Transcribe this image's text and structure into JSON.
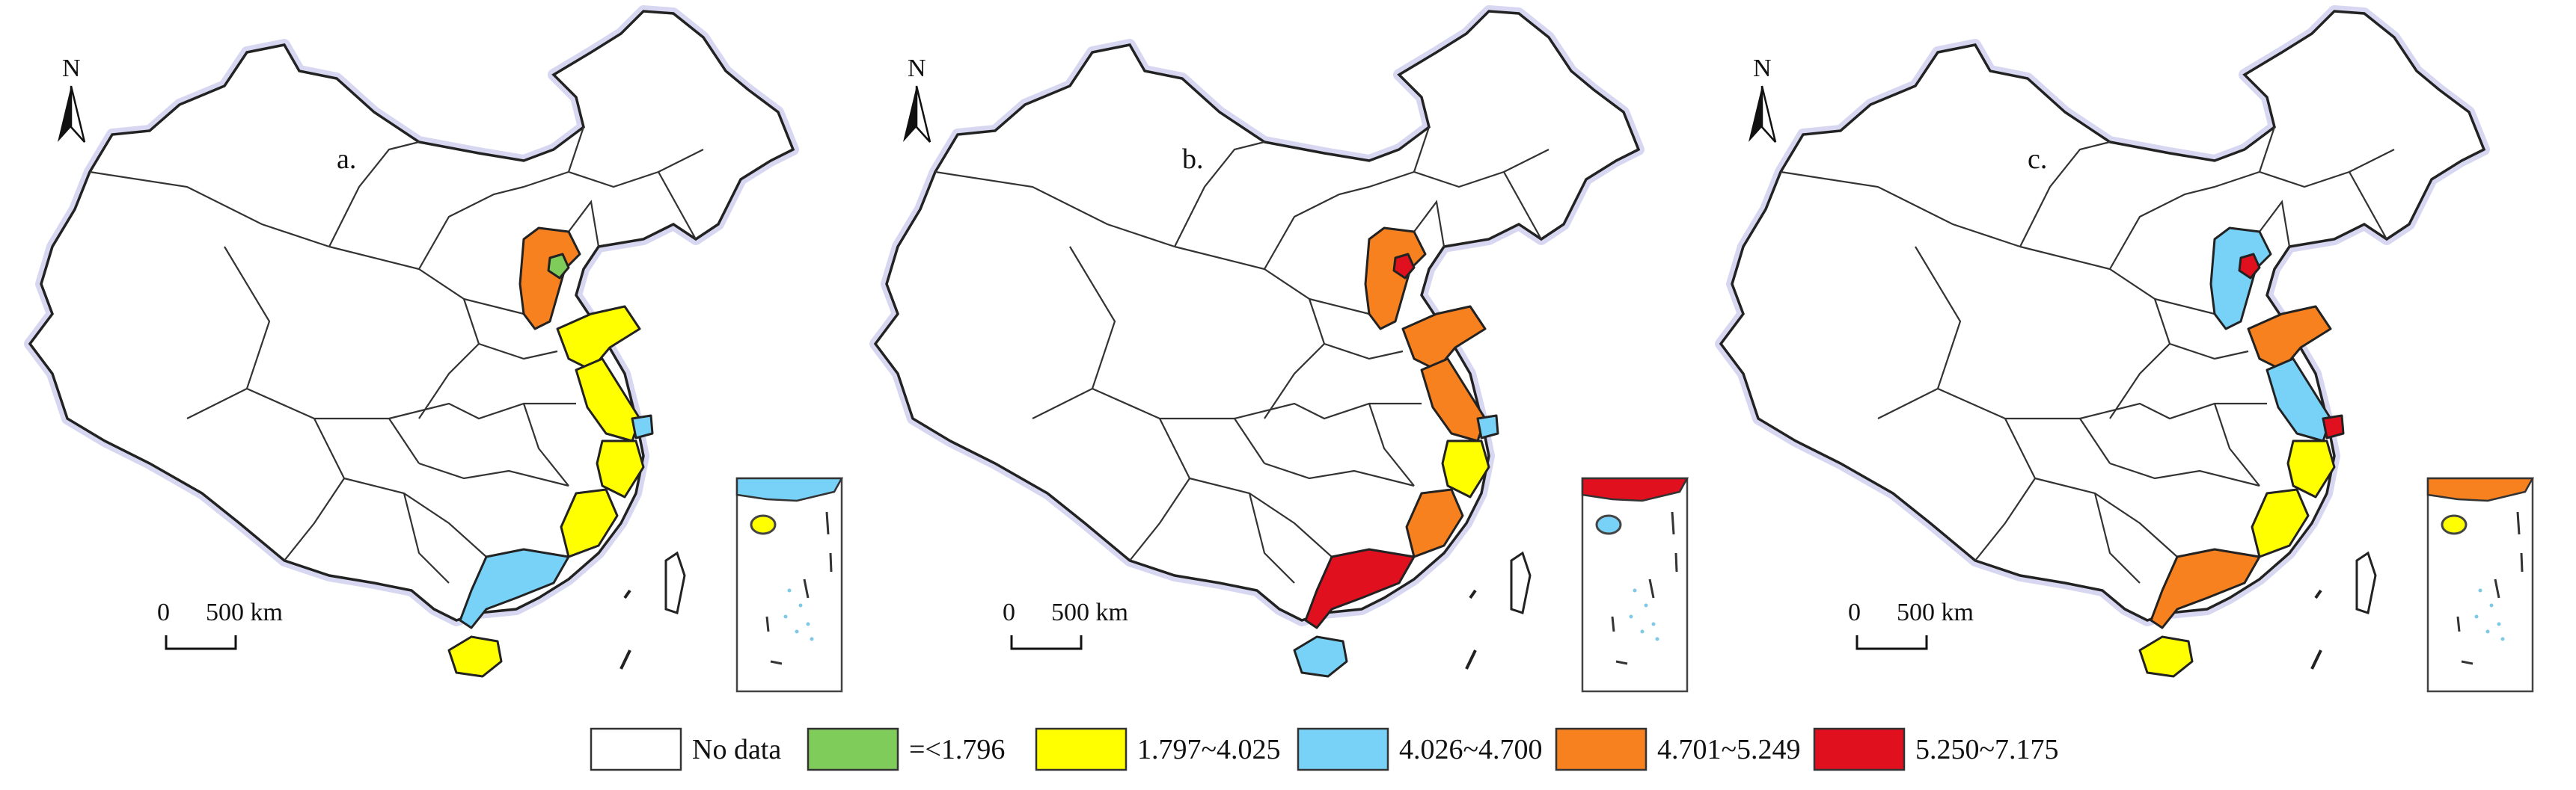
{
  "panels": [
    {
      "label": "a.",
      "provinces": {
        "beijing": "lt1796",
        "hebei": "c4701_5249",
        "shandong": "c1797_4025",
        "jiangsu": "c1797_4025",
        "shanghai": "c4026_4700",
        "zhejiang": "c1797_4025",
        "fujian": "c1797_4025",
        "guangdong": "c4026_4700",
        "hainan": "c1797_4025",
        "inset": "c4026_4700",
        "inset_island": "c1797_4025"
      }
    },
    {
      "label": "b.",
      "provinces": {
        "beijing": "c5250_7175",
        "hebei": "c4701_5249",
        "shandong": "c4701_5249",
        "jiangsu": "c4701_5249",
        "shanghai": "c4026_4700",
        "zhejiang": "c1797_4025",
        "fujian": "c4701_5249",
        "guangdong": "c5250_7175",
        "hainan": "c4026_4700",
        "inset": "c5250_7175",
        "inset_island": "c4026_4700"
      }
    },
    {
      "label": "c.",
      "provinces": {
        "beijing": "c5250_7175",
        "hebei": "c4026_4700",
        "shandong": "c4701_5249",
        "jiangsu": "c4026_4700",
        "shanghai": "c5250_7175",
        "zhejiang": "c1797_4025",
        "fujian": "c1797_4025",
        "guangdong": "c4701_5249",
        "hainan": "c1797_4025",
        "inset": "c4701_5249",
        "inset_island": "c1797_4025"
      }
    }
  ],
  "north_arrow_letter": "N",
  "scale_bar": {
    "zero": "0",
    "distance": "500 km"
  },
  "legend": [
    {
      "key": "nodata",
      "label": "No data",
      "color": "#ffffff"
    },
    {
      "key": "lt1796",
      "label": "=<1.796",
      "color": "#7fcc5b"
    },
    {
      "key": "c1797_4025",
      "label": "1.797~4.025",
      "color": "#ffff00"
    },
    {
      "key": "c4026_4700",
      "label": "4.026~4.700",
      "color": "#78d2f7"
    },
    {
      "key": "c4701_5249",
      "label": "4.701~5.249",
      "color": "#f7801f"
    },
    {
      "key": "c5250_7175",
      "label": "5.250~7.175",
      "color": "#e0101e"
    }
  ]
}
